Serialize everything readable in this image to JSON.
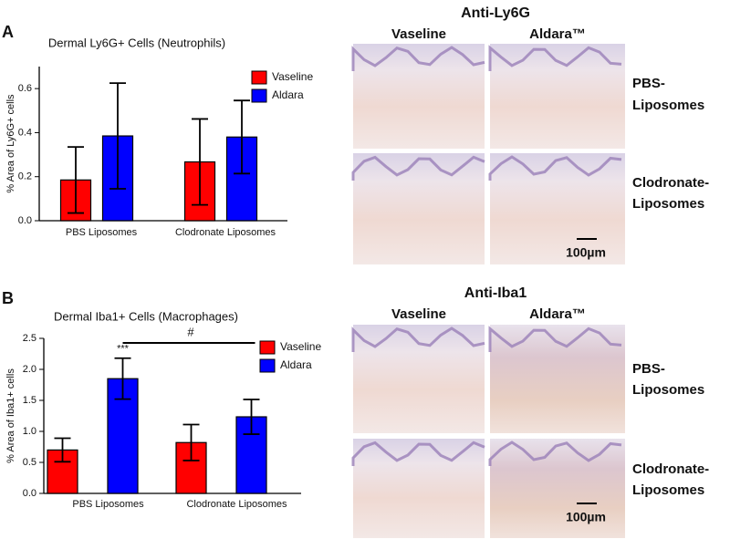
{
  "chart_data": [
    {
      "type": "bar",
      "panel": "A",
      "title": "Dermal Ly6G+ Cells (Neutrophils)",
      "y_label": "% Area of Ly6G+ cells",
      "categories": [
        "PBS Liposomes",
        "Clodronate Liposomes"
      ],
      "series": [
        {
          "name": "Vaseline",
          "color": "#ff0000",
          "values": [
            0.185,
            0.267
          ],
          "errors": [
            0.15,
            0.195
          ]
        },
        {
          "name": "Aldara",
          "color": "#0000ff",
          "values": [
            0.385,
            0.38
          ],
          "errors": [
            0.24,
            0.166
          ]
        }
      ],
      "ylim": [
        0,
        0.7
      ],
      "yticks": [
        {
          "value": 0,
          "label": "0.0"
        },
        0.2,
        0.4,
        0.6
      ]
    },
    {
      "type": "bar",
      "panel": "B",
      "title": "Dermal Iba1+ Cells (Macrophages)",
      "y_label": "% Area of Iba1+ cells",
      "categories": [
        "PBS Liposomes",
        "Clodronate Liposomes"
      ],
      "series": [
        {
          "name": "Vaseline",
          "color": "#ff0000",
          "values": [
            0.7,
            0.82
          ],
          "errors": [
            0.19,
            0.29
          ]
        },
        {
          "name": "Aldara",
          "color": "#0000ff",
          "values": [
            1.85,
            1.235
          ],
          "errors": [
            0.33,
            0.28
          ]
        }
      ],
      "ylim": [
        0,
        2.5
      ],
      "yticks": [
        {
          "value": 0,
          "label": "0.0"
        },
        0.5,
        {
          "value": 1,
          "label": "1.0"
        },
        1.5,
        {
          "value": 2,
          "label": "2.0"
        },
        2.5
      ],
      "annotations": [
        "***",
        "#"
      ]
    }
  ],
  "image_panels": [
    {
      "title": "Anti-Ly6G",
      "columns": [
        "Vaseline",
        "Aldara™"
      ],
      "rows": [
        [
          "PBS-",
          "Liposomes"
        ],
        [
          "Clodronate-",
          "Liposomes"
        ]
      ],
      "scale_bar": "100µm"
    },
    {
      "title": "Anti-Iba1",
      "columns": [
        "Vaseline",
        "Aldara™"
      ],
      "rows": [
        [
          "PBS-",
          "Liposomes"
        ],
        [
          "Clodronate-",
          "Liposomes"
        ]
      ],
      "scale_bar": "100µm"
    }
  ]
}
